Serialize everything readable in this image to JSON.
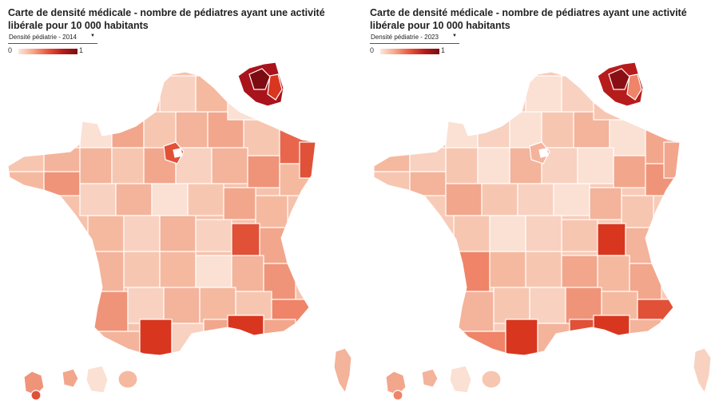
{
  "panels": [
    {
      "title": "Carte de densité médicale - nombre de pédiatres ayant une activité libérale pour 10 000 habitants",
      "selector": {
        "value": "Densité pédiatrie - 2014"
      },
      "legend": {
        "min": "0",
        "max": "1",
        "colors": [
          "#fde6dc",
          "#f6a58a",
          "#e8553c",
          "#b71c1c",
          "#7a0c12"
        ]
      }
    },
    {
      "title": "Carte de densité médicale - nombre de pédiatres ayant une activité libérale pour 10 000 habitants",
      "selector": {
        "value": "Densité pédiatrie - 2023"
      },
      "legend": {
        "min": "0",
        "max": "1",
        "colors": [
          "#fde6dc",
          "#f6a58a",
          "#e8553c",
          "#b71c1c",
          "#7a0c12"
        ]
      }
    }
  ],
  "icons": {
    "dropdown": "chevron-down-icon"
  }
}
